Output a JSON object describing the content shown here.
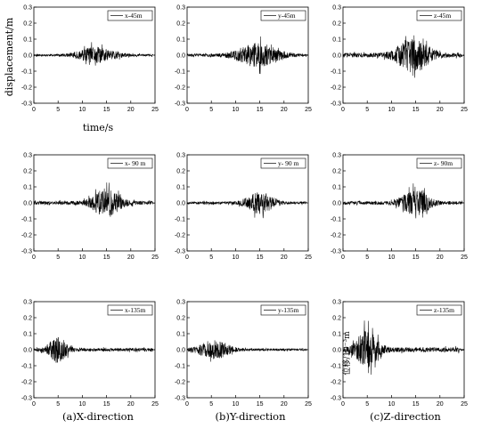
{
  "captions": [
    "(a)X-direction",
    "(b)Y-direction",
    "(c)Z-direction"
  ],
  "axis_labels": {
    "x": "time/s",
    "y": "displacement/m",
    "y_cn": "位移/10⁻³m"
  },
  "chart_data": [
    {
      "type": "line",
      "series": [
        {
          "name": "x-45m",
          "amp": 0.055,
          "peak": 13.0,
          "width": 4.0,
          "seed": 11
        }
      ],
      "xlim": [
        0,
        25
      ],
      "ylim": [
        -0.3,
        0.3
      ],
      "xticks": [
        0,
        5,
        10,
        15,
        20,
        25
      ],
      "yticks": [
        -0.3,
        -0.2,
        -0.1,
        0.0,
        0.1,
        0.2,
        0.3
      ]
    },
    {
      "type": "line",
      "series": [
        {
          "name": "y-45m",
          "amp": 0.075,
          "peak": 14.5,
          "width": 4.5,
          "seed": 23
        }
      ],
      "xlim": [
        0,
        25
      ],
      "ylim": [
        -0.3,
        0.3
      ],
      "xticks": [
        0,
        5,
        10,
        15,
        20,
        25
      ],
      "yticks": [
        -0.3,
        -0.2,
        -0.1,
        0.0,
        0.1,
        0.2,
        0.3
      ]
    },
    {
      "type": "line",
      "series": [
        {
          "name": "z-45m",
          "amp": 0.115,
          "peak": 14.5,
          "width": 3.5,
          "seed": 37
        }
      ],
      "xlim": [
        0,
        25
      ],
      "ylim": [
        -0.3,
        0.3
      ],
      "xticks": [
        0,
        5,
        10,
        15,
        20,
        25
      ],
      "yticks": [
        -0.3,
        -0.2,
        -0.1,
        0.0,
        0.1,
        0.2,
        0.3
      ]
    },
    {
      "type": "line",
      "series": [
        {
          "name": "x- 90 m",
          "amp": 0.095,
          "peak": 15.0,
          "width": 3.0,
          "seed": 41
        }
      ],
      "xlim": [
        0,
        25
      ],
      "ylim": [
        -0.3,
        0.3
      ],
      "xticks": [
        0,
        5,
        10,
        15,
        20,
        25
      ],
      "yticks": [
        -0.3,
        -0.2,
        -0.1,
        0.0,
        0.1,
        0.2,
        0.3
      ]
    },
    {
      "type": "line",
      "series": [
        {
          "name": "y- 90 m",
          "amp": 0.07,
          "peak": 15.0,
          "width": 3.0,
          "seed": 53
        }
      ],
      "xlim": [
        0,
        25
      ],
      "ylim": [
        -0.3,
        0.3
      ],
      "xticks": [
        0,
        5,
        10,
        15,
        20,
        25
      ],
      "yticks": [
        -0.3,
        -0.2,
        -0.1,
        0.0,
        0.1,
        0.2,
        0.3
      ]
    },
    {
      "type": "line",
      "series": [
        {
          "name": "z- 90m",
          "amp": 0.085,
          "peak": 15.0,
          "width": 3.0,
          "seed": 67
        }
      ],
      "xlim": [
        0,
        25
      ],
      "ylim": [
        -0.3,
        0.3
      ],
      "xticks": [
        0,
        5,
        10,
        15,
        20,
        25
      ],
      "yticks": [
        -0.3,
        -0.2,
        -0.1,
        0.0,
        0.1,
        0.2,
        0.3
      ]
    },
    {
      "type": "line",
      "series": [
        {
          "name": "x-135m",
          "amp": 0.085,
          "peak": 5.0,
          "width": 2.0,
          "seed": 71
        }
      ],
      "xlim": [
        0,
        25
      ],
      "ylim": [
        -0.3,
        0.3
      ],
      "xticks": [
        0,
        5,
        10,
        15,
        20,
        25
      ],
      "yticks": [
        -0.3,
        -0.2,
        -0.1,
        0.0,
        0.1,
        0.2,
        0.3
      ]
    },
    {
      "type": "line",
      "series": [
        {
          "name": "y-135m",
          "amp": 0.06,
          "peak": 5.5,
          "width": 3.5,
          "seed": 83
        }
      ],
      "xlim": [
        0,
        25
      ],
      "ylim": [
        -0.3,
        0.3
      ],
      "xticks": [
        0,
        5,
        10,
        15,
        20,
        25
      ],
      "yticks": [
        -0.3,
        -0.2,
        -0.1,
        0.0,
        0.1,
        0.2,
        0.3
      ]
    },
    {
      "type": "line",
      "series": [
        {
          "name": "z-135m",
          "amp": 0.12,
          "peak": 5.0,
          "width": 2.5,
          "seed": 97
        }
      ],
      "xlim": [
        0,
        25
      ],
      "ylim": [
        -0.3,
        0.3
      ],
      "xticks": [
        0,
        5,
        10,
        15,
        20,
        25
      ],
      "yticks": [
        -0.3,
        -0.2,
        -0.1,
        0.0,
        0.1,
        0.2,
        0.3
      ]
    }
  ]
}
